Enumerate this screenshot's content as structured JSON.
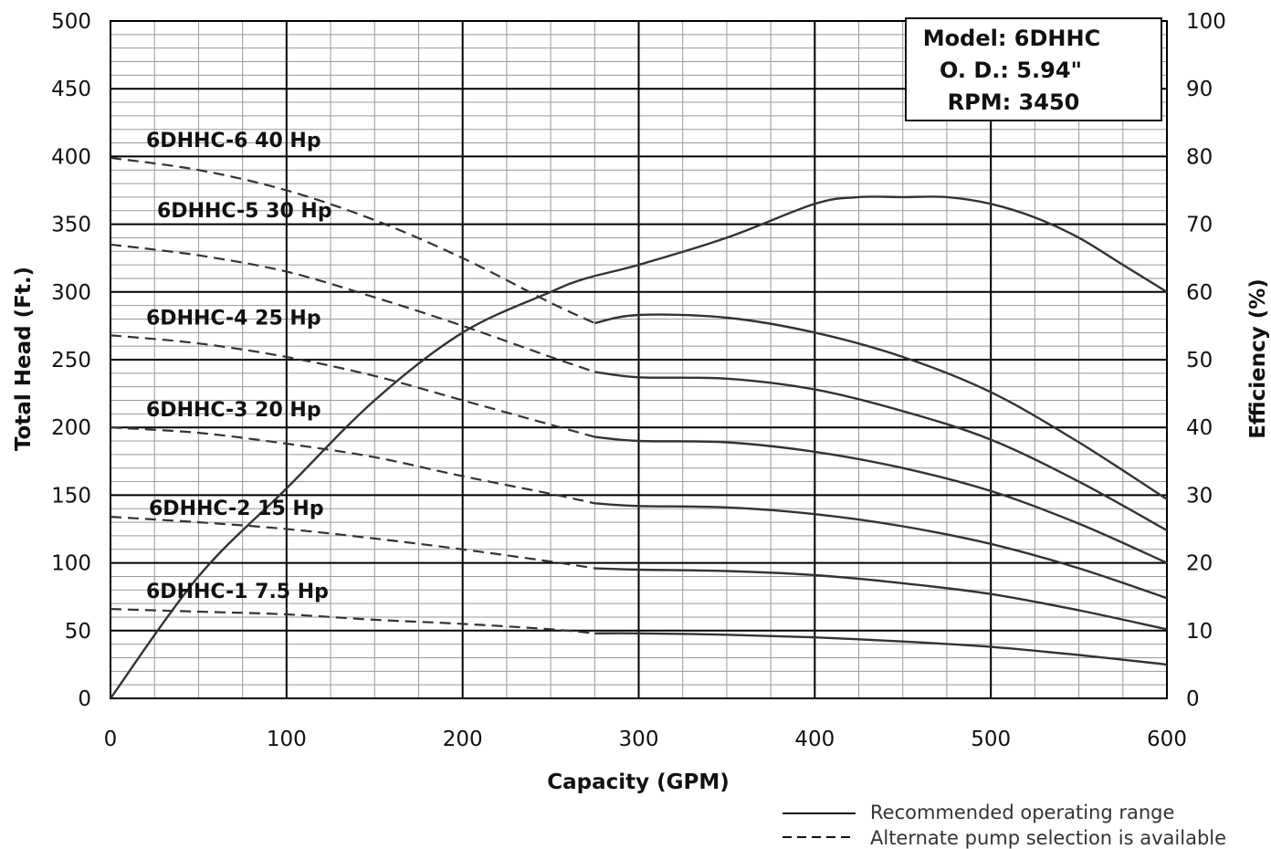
{
  "chart_data": {
    "type": "line",
    "xlabel": "Capacity (GPM)",
    "ylabel": "Total Head (Ft.)",
    "y2label": "Efficiency (%)",
    "xlim": [
      0,
      600
    ],
    "ylim": [
      0,
      500
    ],
    "y2lim": [
      0,
      100
    ],
    "x_ticks": [
      "0",
      "100",
      "200",
      "300",
      "400",
      "500",
      "600"
    ],
    "y_ticks": [
      "0",
      "50",
      "100",
      "150",
      "200",
      "250",
      "300",
      "350",
      "400",
      "450",
      "500"
    ],
    "y2_ticks": [
      "0",
      "10",
      "20",
      "30",
      "40",
      "50",
      "60",
      "70",
      "80",
      "90",
      "100"
    ],
    "grid": true,
    "model_box": {
      "model": "Model: 6DHHC",
      "od": "O. D.: 5.94\"",
      "rpm": "RPM: 3450"
    },
    "legend": {
      "solid": "Recommended operating range",
      "dashed": "Alternate pump selection is available"
    },
    "series": [
      {
        "name": "6DHHC-6 40 Hp",
        "dashed_until": 275,
        "x": [
          0,
          50,
          100,
          150,
          200,
          250,
          275,
          300,
          350,
          400,
          450,
          500,
          550,
          600
        ],
        "y": [
          399,
          390,
          375,
          353,
          325,
          292,
          277,
          283,
          281,
          270,
          252,
          226,
          189,
          147
        ]
      },
      {
        "name": "6DHHC-5 30 Hp",
        "dashed_until": 275,
        "x": [
          0,
          50,
          100,
          150,
          200,
          250,
          275,
          300,
          350,
          400,
          450,
          500,
          550,
          600
        ],
        "y": [
          335,
          327,
          315,
          296,
          275,
          252,
          241,
          237,
          236,
          228,
          212,
          191,
          160,
          124
        ]
      },
      {
        "name": "6DHHC-4 25 Hp",
        "dashed_until": 275,
        "x": [
          0,
          50,
          100,
          150,
          200,
          250,
          275,
          300,
          350,
          400,
          450,
          500,
          550,
          600
        ],
        "y": [
          268,
          262,
          252,
          238,
          220,
          202,
          193,
          190,
          189,
          182,
          170,
          153,
          129,
          100
        ]
      },
      {
        "name": "6DHHC-3 20 Hp",
        "dashed_until": 275,
        "x": [
          0,
          50,
          100,
          150,
          200,
          250,
          275,
          300,
          350,
          400,
          450,
          500,
          550,
          600
        ],
        "y": [
          200,
          196,
          188,
          178,
          164,
          151,
          144,
          142,
          141,
          136,
          127,
          114,
          96,
          74
        ]
      },
      {
        "name": "6DHHC-2 15 Hp",
        "dashed_until": 275,
        "x": [
          0,
          50,
          100,
          150,
          200,
          250,
          275,
          300,
          350,
          400,
          450,
          500,
          550,
          600
        ],
        "y": [
          134,
          130,
          125,
          118,
          110,
          101,
          96,
          95,
          94,
          91,
          85,
          77,
          65,
          51
        ]
      },
      {
        "name": "6DHHC-1 7.5 Hp",
        "dashed_until": 275,
        "x": [
          0,
          50,
          100,
          150,
          200,
          250,
          275,
          300,
          350,
          400,
          450,
          500,
          550,
          600
        ],
        "y": [
          66,
          64,
          62,
          58,
          55,
          51,
          48,
          48,
          47,
          45,
          42,
          38,
          32,
          25
        ]
      }
    ],
    "efficiency": {
      "x": [
        0,
        50,
        100,
        150,
        200,
        250,
        270,
        300,
        350,
        400,
        425,
        450,
        475,
        500,
        525,
        550,
        575,
        600
      ],
      "y": [
        0,
        18,
        31,
        44,
        54,
        60,
        62,
        64,
        68,
        73,
        74,
        74,
        74,
        73,
        71,
        68,
        64,
        60
      ]
    }
  }
}
